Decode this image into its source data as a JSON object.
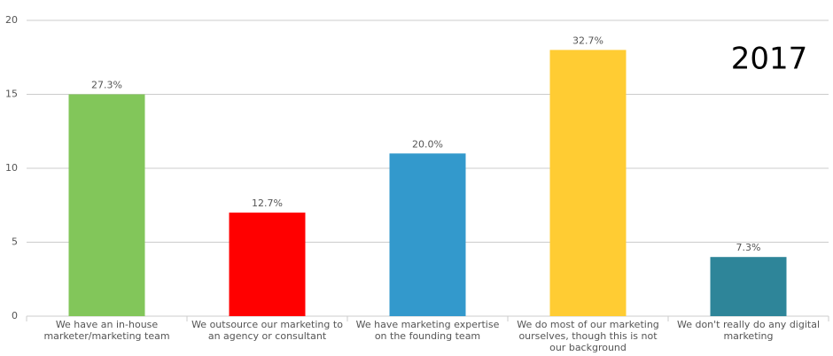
{
  "chart_data": {
    "type": "bar",
    "annotation": "2017",
    "categories": [
      "We have an in-house marketer/marketing team",
      "We outsource our marketing to an agency or consultant",
      "We have marketing expertise on the founding team",
      "We do most of our marketing ourselves, though this is not our background",
      "We don't really do any digital marketing"
    ],
    "values": [
      15,
      7,
      11,
      18,
      4
    ],
    "bar_labels": [
      "27.3%",
      "12.7%",
      "20.0%",
      "32.7%",
      "7.3%"
    ],
    "colors": [
      "#82c65a",
      "#ff0000",
      "#3399cc",
      "#ffcc33",
      "#2e8599"
    ],
    "ylim": [
      0,
      20
    ],
    "yticks": [
      0,
      5,
      10,
      15,
      20
    ],
    "grid": true
  }
}
